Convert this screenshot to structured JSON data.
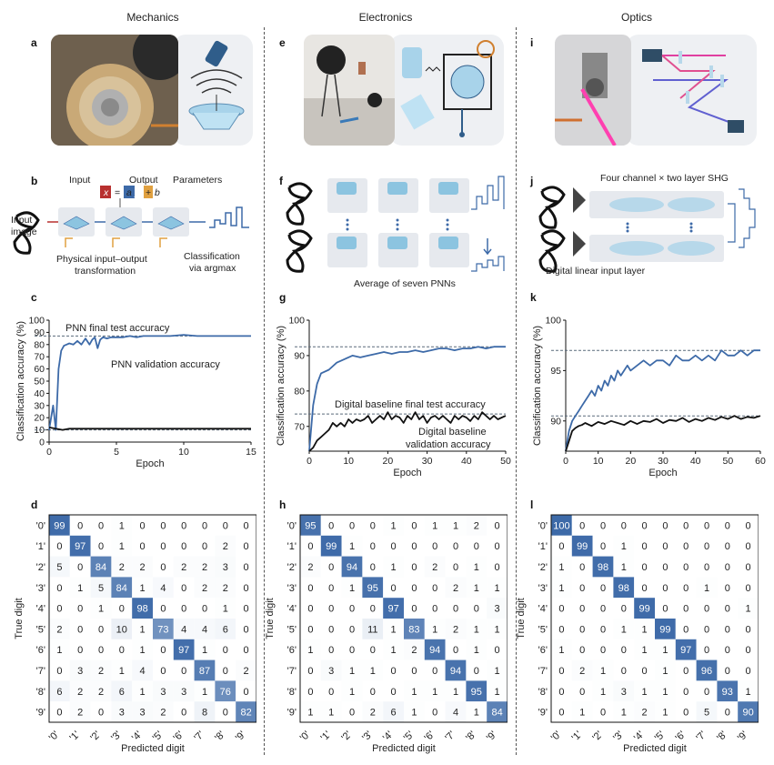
{
  "columns": {
    "mechanics": "Mechanics",
    "electronics": "Electronics",
    "optics": "Optics"
  },
  "panel_letters": [
    "a",
    "b",
    "c",
    "d",
    "e",
    "f",
    "g",
    "h",
    "i",
    "j",
    "k",
    "l"
  ],
  "panel_b": {
    "input": "Input",
    "x": "x",
    "eq": "=",
    "a": "a",
    "y": "y",
    "plus": "+",
    "bb": "b",
    "output": "Output",
    "parameters": "Parameters",
    "input_image_1": "Input",
    "input_image_2": "image",
    "physical_1": "Physical input–output",
    "physical_2": "transformation",
    "classification_1": "Classification",
    "classification_2": "via argmax"
  },
  "panel_f": {
    "average": "Average of seven PNNs"
  },
  "panel_j": {
    "title": "Four channel × two layer SHG",
    "digital": "Digital linear input layer"
  },
  "chart_data": [
    {
      "type": "line",
      "panel": "c",
      "xlabel": "Epoch",
      "ylabel": "Classification accuracy (%)",
      "xlim": [
        0,
        15
      ],
      "ylim": [
        0,
        100
      ],
      "xticks": [
        0,
        5,
        10,
        15
      ],
      "yticks": [
        0,
        10,
        20,
        30,
        40,
        50,
        60,
        70,
        80,
        90,
        100
      ],
      "annotations": [
        "PNN final test accuracy",
        "PNN validation accuracy"
      ],
      "hlines": [
        {
          "y": 87,
          "color": "#5a6a7a"
        },
        {
          "y": 10,
          "color": "#5a6a7a"
        }
      ],
      "series": [
        {
          "color": "#3d6aa8",
          "x": [
            0,
            0.3,
            0.5,
            0.7,
            0.9,
            1.1,
            1.3,
            1.5,
            1.8,
            2.1,
            2.4,
            2.7,
            3.0,
            3.2,
            3.4,
            3.6,
            3.8,
            4.0,
            4.3,
            4.6,
            5,
            5.5,
            6,
            6.5,
            7,
            8,
            9,
            10,
            11,
            12,
            13,
            14,
            15
          ],
          "y": [
            10,
            30,
            10,
            60,
            75,
            79,
            80,
            81,
            80,
            83,
            80,
            85,
            80,
            84,
            86,
            77,
            84,
            86,
            85,
            86,
            86,
            86,
            87,
            86,
            87,
            87,
            87,
            88,
            87,
            87,
            87,
            87,
            87
          ]
        },
        {
          "color": "#111111",
          "x": [
            0,
            0.5,
            1,
            1.5,
            2,
            3,
            4,
            5,
            6,
            8,
            10,
            12,
            15
          ],
          "y": [
            12,
            11,
            10,
            11,
            11,
            11,
            11,
            11,
            11,
            11,
            11,
            11,
            11
          ]
        }
      ]
    },
    {
      "type": "line",
      "panel": "g",
      "xlabel": "Epoch",
      "ylabel": "Classification accuracy (%)",
      "xlim": [
        0,
        50
      ],
      "ylim": [
        63,
        100
      ],
      "xticks": [
        0,
        10,
        20,
        30,
        40,
        50
      ],
      "yticks": [
        70,
        80,
        90,
        100
      ],
      "annotations": [
        "Digital baseline final test accuracy",
        "Digital baseline",
        "validation accuracy"
      ],
      "hlines": [
        {
          "y": 92.5,
          "color": "#5a6a7a"
        },
        {
          "y": 73.5,
          "color": "#5a6a7a"
        }
      ],
      "series": [
        {
          "color": "#3d6aa8",
          "x": [
            0,
            1,
            2,
            3,
            5,
            7,
            9,
            11,
            13,
            15,
            17,
            19,
            21,
            23,
            25,
            27,
            29,
            31,
            33,
            35,
            37,
            39,
            41,
            43,
            45,
            47,
            49,
            50
          ],
          "y": [
            63,
            76,
            82,
            85,
            86,
            88,
            89,
            90,
            89.5,
            90,
            90.5,
            91,
            90.5,
            91,
            91,
            91.5,
            91,
            91.5,
            92,
            92,
            91.5,
            92,
            92,
            92.5,
            92,
            92.5,
            92.5,
            92.5
          ]
        },
        {
          "color": "#111111",
          "x": [
            0,
            1,
            2,
            3,
            4,
            5,
            6,
            7,
            8,
            9,
            10,
            11,
            12,
            13,
            14,
            15,
            16,
            17,
            18,
            19,
            20,
            21,
            22,
            23,
            24,
            25,
            26,
            27,
            28,
            29,
            30,
            31,
            32,
            33,
            34,
            35,
            36,
            37,
            38,
            39,
            40,
            41,
            42,
            43,
            44,
            45,
            46,
            47,
            48,
            49,
            50
          ],
          "y": [
            63,
            64,
            66,
            67,
            68,
            69,
            71,
            70,
            71,
            70,
            72,
            71,
            72,
            71.5,
            72,
            73,
            71,
            72,
            73,
            72,
            74,
            72,
            73,
            72.5,
            71,
            73,
            72,
            74,
            72,
            73,
            71,
            72.5,
            73,
            72,
            73,
            72,
            71,
            73,
            72,
            73,
            72.5,
            71.5,
            73,
            72,
            74,
            73,
            72,
            73,
            72,
            72.5,
            73
          ]
        }
      ]
    },
    {
      "type": "line",
      "panel": "k",
      "xlabel": "Epoch",
      "ylabel": "Classification accuracy (%)",
      "xlim": [
        0,
        60
      ],
      "ylim": [
        87,
        100
      ],
      "xticks": [
        0,
        10,
        20,
        30,
        40,
        50,
        60
      ],
      "yticks": [
        90,
        95,
        100
      ],
      "annotations": [],
      "hlines": [
        {
          "y": 97,
          "color": "#5a6a7a"
        },
        {
          "y": 90.5,
          "color": "#5a6a7a"
        }
      ],
      "series": [
        {
          "color": "#3d6aa8",
          "x": [
            0,
            1,
            2,
            3,
            4,
            5,
            6,
            7,
            8,
            9,
            10,
            11,
            12,
            13,
            14,
            15,
            16,
            17,
            18,
            19,
            20,
            22,
            24,
            26,
            28,
            30,
            32,
            34,
            36,
            38,
            40,
            42,
            44,
            46,
            48,
            50,
            52,
            54,
            56,
            58,
            60
          ],
          "y": [
            87,
            89,
            90,
            90.5,
            91,
            91.5,
            92,
            92.5,
            93,
            92.5,
            93.5,
            93,
            94,
            93.5,
            94.5,
            94,
            95,
            94.5,
            95,
            95.5,
            95,
            95.5,
            96,
            95.5,
            96,
            96,
            95.5,
            96.5,
            96,
            96,
            96.5,
            96,
            96.5,
            96,
            97,
            96.5,
            96.5,
            97,
            96.5,
            97,
            97
          ]
        },
        {
          "color": "#111111",
          "x": [
            0,
            1,
            2,
            3,
            4,
            5,
            6,
            8,
            10,
            12,
            14,
            16,
            18,
            20,
            22,
            24,
            26,
            28,
            30,
            32,
            34,
            36,
            38,
            40,
            42,
            44,
            46,
            48,
            50,
            52,
            54,
            56,
            58,
            60
          ],
          "y": [
            87,
            88,
            89,
            89.3,
            89.5,
            89.6,
            89.8,
            89.5,
            89.9,
            89.7,
            90,
            89.8,
            89.6,
            90,
            89.7,
            90,
            89.9,
            90.2,
            89.8,
            90.1,
            90,
            90.3,
            89.9,
            90.2,
            90,
            90.3,
            90.1,
            90.4,
            90.2,
            90.5,
            90.2,
            90.4,
            90.3,
            90.5
          ]
        }
      ]
    },
    {
      "type": "heatmap",
      "panel": "d",
      "xlabel": "Predicted digit",
      "ylabel": "True digit",
      "labels": [
        "'0'",
        "'1'",
        "'2'",
        "'3'",
        "'4'",
        "'5'",
        "'6'",
        "'7'",
        "'8'",
        "'9'"
      ],
      "matrix": [
        [
          99,
          0,
          0,
          1,
          0,
          0,
          0,
          0,
          0,
          0
        ],
        [
          0,
          97,
          0,
          1,
          0,
          0,
          0,
          0,
          2,
          0
        ],
        [
          5,
          0,
          84,
          2,
          2,
          0,
          2,
          2,
          3,
          0
        ],
        [
          0,
          1,
          5,
          84,
          1,
          4,
          0,
          2,
          2,
          0
        ],
        [
          0,
          0,
          1,
          0,
          98,
          0,
          0,
          0,
          1,
          0
        ],
        [
          2,
          0,
          0,
          10,
          1,
          73,
          4,
          4,
          6,
          0
        ],
        [
          1,
          0,
          0,
          0,
          1,
          0,
          97,
          1,
          0,
          0
        ],
        [
          0,
          3,
          2,
          1,
          4,
          0,
          0,
          87,
          0,
          2
        ],
        [
          6,
          2,
          2,
          6,
          1,
          3,
          3,
          1,
          76,
          0
        ],
        [
          0,
          2,
          0,
          3,
          3,
          2,
          0,
          8,
          0,
          82
        ]
      ]
    },
    {
      "type": "heatmap",
      "panel": "h",
      "xlabel": "Predicted digit",
      "ylabel": "True digit",
      "labels": [
        "'0'",
        "'1'",
        "'2'",
        "'3'",
        "'4'",
        "'5'",
        "'6'",
        "'7'",
        "'8'",
        "'9'"
      ],
      "matrix": [
        [
          95,
          0,
          0,
          0,
          1,
          0,
          1,
          1,
          2,
          0
        ],
        [
          0,
          99,
          1,
          0,
          0,
          0,
          0,
          0,
          0,
          0
        ],
        [
          2,
          0,
          94,
          0,
          1,
          0,
          2,
          0,
          1,
          0
        ],
        [
          0,
          0,
          1,
          95,
          0,
          0,
          0,
          2,
          1,
          1
        ],
        [
          0,
          0,
          0,
          0,
          97,
          0,
          0,
          0,
          0,
          3
        ],
        [
          0,
          0,
          0,
          11,
          1,
          83,
          1,
          2,
          1,
          1
        ],
        [
          1,
          0,
          0,
          0,
          1,
          2,
          94,
          0,
          1,
          0
        ],
        [
          0,
          3,
          1,
          1,
          0,
          0,
          0,
          94,
          0,
          1
        ],
        [
          0,
          0,
          1,
          0,
          0,
          1,
          1,
          1,
          95,
          1
        ],
        [
          1,
          1,
          0,
          2,
          6,
          1,
          0,
          4,
          1,
          84
        ]
      ]
    },
    {
      "type": "heatmap",
      "panel": "l",
      "xlabel": "Predicted digit",
      "ylabel": "True digit",
      "labels": [
        "'0'",
        "'1'",
        "'2'",
        "'3'",
        "'4'",
        "'5'",
        "'6'",
        "'7'",
        "'8'",
        "'9'"
      ],
      "matrix": [
        [
          100,
          0,
          0,
          0,
          0,
          0,
          0,
          0,
          0,
          0
        ],
        [
          0,
          99,
          0,
          1,
          0,
          0,
          0,
          0,
          0,
          0
        ],
        [
          1,
          0,
          98,
          1,
          0,
          0,
          0,
          0,
          0,
          0
        ],
        [
          1,
          0,
          0,
          98,
          0,
          0,
          0,
          1,
          0,
          0
        ],
        [
          0,
          0,
          0,
          0,
          99,
          0,
          0,
          0,
          0,
          1
        ],
        [
          0,
          0,
          0,
          1,
          1,
          99,
          0,
          0,
          0,
          0
        ],
        [
          1,
          0,
          0,
          0,
          1,
          1,
          97,
          0,
          0,
          0
        ],
        [
          0,
          2,
          1,
          0,
          0,
          1,
          0,
          96,
          0,
          0
        ],
        [
          0,
          0,
          1,
          3,
          1,
          1,
          0,
          0,
          93,
          1
        ],
        [
          0,
          1,
          0,
          1,
          2,
          1,
          0,
          5,
          0,
          90
        ]
      ]
    }
  ]
}
